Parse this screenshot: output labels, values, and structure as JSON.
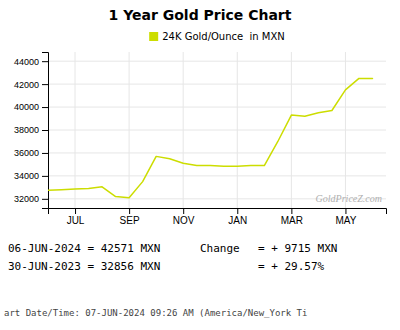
{
  "chart_data": {
    "type": "line",
    "title": "1 Year Gold Price Chart",
    "x": [
      0,
      0.5,
      1,
      1.5,
      2,
      2.5,
      3,
      3.5,
      4,
      4.5,
      5,
      5.5,
      6,
      6.5,
      7,
      7.5,
      8,
      8.5,
      9,
      9.5,
      10,
      10.5,
      11,
      11.5,
      12
    ],
    "series": [
      {
        "name": "24K Gold/Ounce  in MXN",
        "color": "#ccdd00",
        "values": [
          32750,
          32800,
          32850,
          32900,
          33050,
          32200,
          32100,
          33500,
          35700,
          35500,
          35100,
          34900,
          34900,
          34850,
          34850,
          34900,
          34900,
          37000,
          39300,
          39200,
          39500,
          39700,
          41500,
          42500,
          42500
        ]
      }
    ],
    "xlim": [
      0,
      12.5
    ],
    "xticks": [
      {
        "value": 1,
        "label": "JUL"
      },
      {
        "value": 3,
        "label": "SEP"
      },
      {
        "value": 5,
        "label": "NOV"
      },
      {
        "value": 7,
        "label": "JAN"
      },
      {
        "value": 9,
        "label": "MAR"
      },
      {
        "value": 11,
        "label": "MAY"
      }
    ],
    "ylim": [
      31200,
      44800
    ],
    "yticks": [
      32000,
      34000,
      36000,
      38000,
      40000,
      42000,
      44000
    ],
    "grid": true,
    "legend": "top",
    "annotations": [
      "GoldPriceZ.com",
      "06-JUN-2024 = 42571 MXN",
      "30-JUN-2023 = 32856 MXN",
      "Change",
      "= + 9715 MXN",
      "= + 29.57%",
      "art Date/Time: 07-JUN-2024 09:26 AM (America/New_York Ti"
    ]
  }
}
